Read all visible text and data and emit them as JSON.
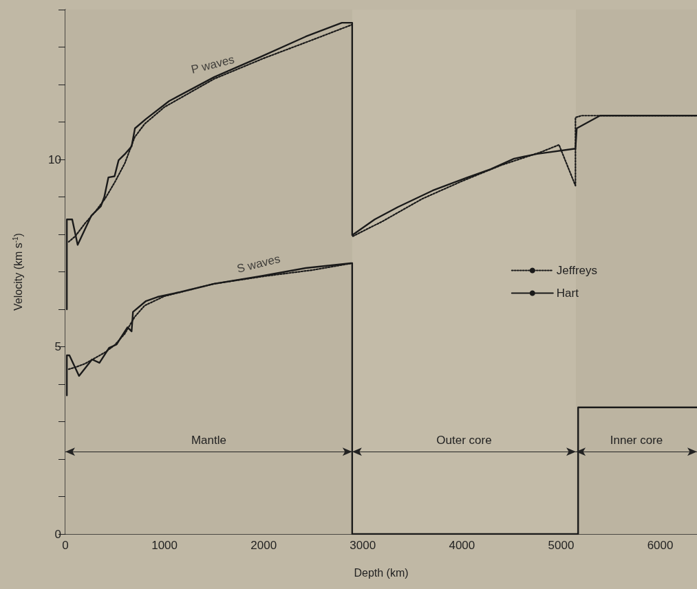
{
  "chart_data": {
    "type": "line",
    "xlabel": "Depth (km)",
    "ylabel": "Velocity (km s$^{-1}$)",
    "xlim": [
      0,
      6371
    ],
    "xticks": [
      0,
      1000,
      2000,
      3000,
      4000,
      5000,
      6000
    ],
    "ylim": [
      0,
      14
    ],
    "yticks": [
      0,
      {
        "value": 1,
        "label": null
      },
      {
        "value": 2,
        "label": null
      },
      {
        "value": 3,
        "label": null
      },
      {
        "value": 4,
        "label": null
      },
      5,
      {
        "value": 6,
        "label": null
      },
      {
        "value": 7,
        "label": null
      },
      {
        "value": 8,
        "label": null
      },
      {
        "value": 9,
        "label": null
      },
      10,
      {
        "value": 11,
        "label": null
      },
      {
        "value": 12,
        "label": null
      },
      {
        "value": 13,
        "label": null
      },
      {
        "value": 14,
        "label": null
      }
    ],
    "grid": false,
    "legend": "right",
    "marker": "none",
    "series": [
      {
        "name": "Jeffreys",
        "color": "#1a1a1a",
        "line_style": "dotted",
        "x": [
          33,
          100,
          200,
          300,
          400,
          500,
          600,
          700,
          800,
          1000,
          1500,
          2000,
          2500,
          2893,
          null,
          2900,
          3200,
          3600,
          4000,
          4400,
          4800,
          4979,
          5145,
          5145,
          5207,
          6371,
          null,
          33,
          100,
          200,
          300,
          400,
          500,
          600,
          700,
          800,
          1000,
          1500,
          2000,
          2500,
          2893
        ],
        "values": [
          7.8,
          7.95,
          8.3,
          8.6,
          8.95,
          9.4,
          9.9,
          10.6,
          10.95,
          11.4,
          12.15,
          12.7,
          13.2,
          13.6,
          null,
          7.95,
          8.35,
          8.95,
          9.42,
          9.85,
          10.2,
          10.39,
          9.3,
          11.12,
          11.17,
          11.17,
          null,
          4.4,
          4.45,
          4.55,
          4.7,
          4.85,
          5.05,
          5.35,
          5.8,
          6.1,
          6.35,
          6.68,
          6.88,
          7.05,
          7.23
        ]
      },
      {
        "name": "Hart",
        "color": "#1a1a1a",
        "line_style": "solid",
        "x": [
          15,
          15,
          69,
          124,
          262,
          358,
          393,
          434,
          496,
          537,
          606,
          668,
          702,
          813,
          1047,
          1501,
          1963,
          2424,
          2789,
          2893,
          2893,
          2900,
          3120,
          3354,
          3705,
          4056,
          4290,
          4525,
          4759,
          5145,
          5158,
          5393,
          6371,
          null,
          15,
          15,
          41,
          138,
          269,
          344,
          441,
          517,
          551,
          627,
          668,
          682,
          813,
          930,
          1157,
          1501,
          1963,
          2424,
          2879,
          2893,
          2893,
          5172,
          5172,
          6371
        ],
        "values": [
          6.0,
          8.4,
          8.4,
          7.72,
          8.5,
          8.75,
          9.0,
          9.52,
          9.55,
          9.98,
          10.16,
          10.35,
          10.83,
          11.08,
          11.56,
          12.2,
          12.73,
          13.28,
          13.65,
          13.65,
          7.98,
          7.99,
          8.4,
          8.73,
          9.17,
          9.52,
          9.74,
          10.02,
          10.15,
          10.29,
          10.83,
          11.17,
          11.17,
          null,
          3.7,
          4.77,
          4.77,
          4.22,
          4.66,
          4.57,
          4.97,
          5.06,
          5.21,
          5.52,
          5.41,
          5.93,
          6.22,
          6.33,
          6.46,
          6.68,
          6.88,
          7.1,
          7.23,
          7.23,
          0,
          0,
          3.38,
          3.38
        ]
      }
    ],
    "annotations": [
      {
        "text": "P waves",
        "x": 1501,
        "y": 12.2
      },
      {
        "text": "S waves",
        "x": 1963,
        "y": 6.88
      }
    ],
    "bands": [
      {
        "axis": "x",
        "from": 0,
        "to": 2893,
        "label": "Mantle",
        "color": "#bcb4a1"
      },
      {
        "axis": "x",
        "from": 2893,
        "to": 5150,
        "label": "Outer core",
        "color": "#c3bba8"
      },
      {
        "axis": "x",
        "from": 5150,
        "to": 6371,
        "label": "Inner core",
        "color": "#bcb4a1"
      }
    ]
  }
}
